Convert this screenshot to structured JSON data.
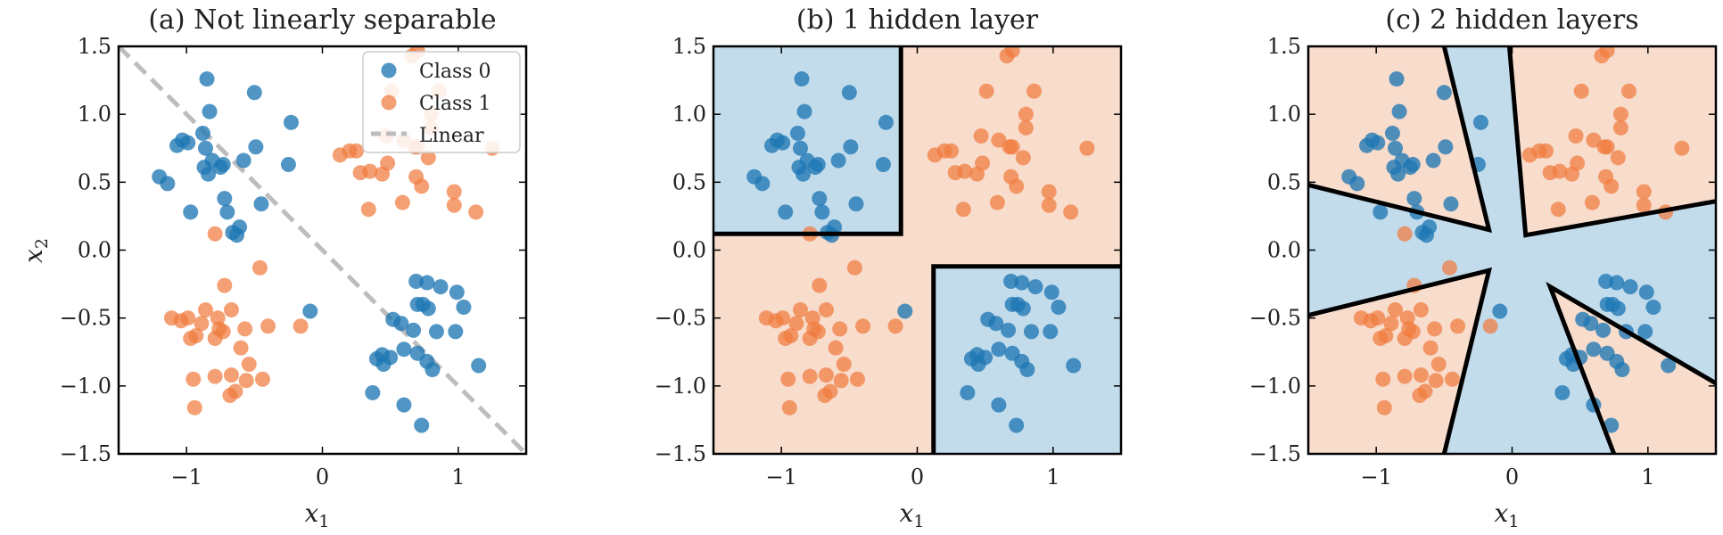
{
  "chart_data": [
    {
      "type": "scatter",
      "title": "(a) Not linearly separable",
      "xlabel": "x",
      "xlabel_sub": "1",
      "ylabel": "x",
      "ylabel_sub": "2",
      "xlim": [
        -1.5,
        1.5
      ],
      "ylim": [
        -1.5,
        1.5
      ],
      "xticks": [
        -1,
        0,
        1
      ],
      "yticks": [
        -1.5,
        -1.0,
        -0.5,
        0.0,
        0.5,
        1.0,
        1.5
      ],
      "legend": {
        "placement": "top-right",
        "entries": [
          "Class 0",
          "Class 1",
          "Linear"
        ]
      },
      "linear_boundary": [
        [
          -1.5,
          1.5
        ],
        [
          1.5,
          -1.5
        ]
      ],
      "regions": [],
      "boundaries": []
    },
    {
      "type": "scatter",
      "title": "(b) 1 hidden layer",
      "xlabel": "x",
      "xlabel_sub": "1",
      "xlim": [
        -1.5,
        1.5
      ],
      "ylim": [
        -1.5,
        1.5
      ],
      "xticks": [
        -1,
        0,
        1
      ],
      "yticks": [
        -1.5,
        -1.0,
        -0.5,
        0.0,
        0.5,
        1.0,
        1.5
      ],
      "background_class": 1,
      "regions": [
        {
          "class": 0,
          "polygon": [
            [
              -1.5,
              1.5
            ],
            [
              -0.12,
              1.5
            ],
            [
              -0.12,
              0.12
            ],
            [
              -1.5,
              0.12
            ]
          ]
        },
        {
          "class": 0,
          "polygon": [
            [
              0.12,
              -0.12
            ],
            [
              1.5,
              -0.12
            ],
            [
              1.5,
              -1.5
            ],
            [
              0.12,
              -1.5
            ]
          ]
        }
      ],
      "boundaries": [
        [
          [
            -1.5,
            0.12
          ],
          [
            -0.12,
            0.12
          ],
          [
            -0.12,
            1.5
          ]
        ],
        [
          [
            0.12,
            -1.5
          ],
          [
            0.12,
            -0.12
          ],
          [
            1.5,
            -0.12
          ]
        ]
      ]
    },
    {
      "type": "scatter",
      "title": "(c) 2 hidden layers",
      "xlabel": "x",
      "xlabel_sub": "1",
      "xlim": [
        -1.5,
        1.5
      ],
      "ylim": [
        -1.5,
        1.5
      ],
      "xticks": [
        -1,
        0,
        1
      ],
      "yticks": [
        -1.5,
        -1.0,
        -0.5,
        0.0,
        0.5,
        1.0,
        1.5
      ],
      "background_class": 0,
      "regions": [
        {
          "class": 1,
          "polygon": [
            [
              -1.5,
              0.48
            ],
            [
              -0.17,
              0.15
            ],
            [
              -0.5,
              1.5
            ],
            [
              -1.5,
              1.5
            ]
          ]
        },
        {
          "class": 1,
          "polygon": [
            [
              -0.02,
              1.5
            ],
            [
              0.1,
              0.11
            ],
            [
              1.5,
              0.36
            ],
            [
              1.5,
              1.5
            ]
          ]
        },
        {
          "class": 1,
          "polygon": [
            [
              -1.5,
              -0.48
            ],
            [
              -0.17,
              -0.15
            ],
            [
              -0.5,
              -1.5
            ],
            [
              -1.5,
              -1.5
            ]
          ]
        },
        {
          "class": 1,
          "polygon": [
            [
              0.28,
              -0.27
            ],
            [
              1.5,
              -0.98
            ],
            [
              1.5,
              -1.5
            ],
            [
              0.75,
              -1.5
            ]
          ]
        }
      ],
      "boundaries": [
        [
          [
            -1.5,
            0.48
          ],
          [
            -0.17,
            0.15
          ],
          [
            -0.5,
            1.5
          ]
        ],
        [
          [
            -0.02,
            1.5
          ],
          [
            0.1,
            0.11
          ],
          [
            1.5,
            0.36
          ]
        ],
        [
          [
            -1.5,
            -0.48
          ],
          [
            -0.17,
            -0.15
          ],
          [
            -0.5,
            -1.5
          ]
        ],
        [
          [
            0.75,
            -1.5
          ],
          [
            0.28,
            -0.27
          ],
          [
            1.5,
            -0.98
          ]
        ]
      ]
    }
  ],
  "points": {
    "class0": [
      [
        -0.85,
        1.26
      ],
      [
        -0.5,
        1.16
      ],
      [
        -0.83,
        1.02
      ],
      [
        -0.23,
        0.94
      ],
      [
        -1.03,
        0.81
      ],
      [
        -0.88,
        0.86
      ],
      [
        -1.07,
        0.77
      ],
      [
        -0.99,
        0.79
      ],
      [
        -0.86,
        0.75
      ],
      [
        -0.49,
        0.76
      ],
      [
        -0.81,
        0.66
      ],
      [
        -0.73,
        0.63
      ],
      [
        -0.75,
        0.61
      ],
      [
        -0.87,
        0.61
      ],
      [
        -1.2,
        0.54
      ],
      [
        -0.84,
        0.56
      ],
      [
        -0.58,
        0.66
      ],
      [
        -0.25,
        0.63
      ],
      [
        -1.14,
        0.49
      ],
      [
        -0.72,
        0.38
      ],
      [
        -0.97,
        0.28
      ],
      [
        -0.7,
        0.28
      ],
      [
        -0.45,
        0.34
      ],
      [
        -0.61,
        0.17
      ],
      [
        -0.66,
        0.13
      ],
      [
        -0.63,
        0.11
      ],
      [
        0.69,
        -0.23
      ],
      [
        0.77,
        -0.24
      ],
      [
        0.87,
        -0.27
      ],
      [
        0.7,
        -0.4
      ],
      [
        0.74,
        -0.4
      ],
      [
        0.78,
        -0.43
      ],
      [
        0.99,
        -0.31
      ],
      [
        1.04,
        -0.42
      ],
      [
        0.52,
        -0.51
      ],
      [
        0.58,
        -0.54
      ],
      [
        0.67,
        -0.59
      ],
      [
        0.84,
        -0.6
      ],
      [
        0.98,
        -0.6
      ],
      [
        0.4,
        -0.8
      ],
      [
        0.44,
        -0.77
      ],
      [
        0.45,
        -0.84
      ],
      [
        0.5,
        -0.79
      ],
      [
        0.6,
        -0.73
      ],
      [
        0.7,
        -0.76
      ],
      [
        0.77,
        -0.82
      ],
      [
        0.81,
        -0.88
      ],
      [
        1.15,
        -0.85
      ],
      [
        0.37,
        -1.05
      ],
      [
        0.6,
        -1.14
      ],
      [
        0.73,
        -1.29
      ],
      [
        -0.09,
        -0.45
      ]
    ],
    "class1": [
      [
        0.7,
        1.47
      ],
      [
        0.66,
        1.43
      ],
      [
        0.86,
        1.17
      ],
      [
        0.51,
        1.17
      ],
      [
        0.8,
        1.0
      ],
      [
        0.8,
        0.9
      ],
      [
        0.25,
        0.73
      ],
      [
        0.47,
        0.84
      ],
      [
        0.6,
        0.81
      ],
      [
        0.68,
        0.76
      ],
      [
        0.7,
        0.76
      ],
      [
        0.2,
        0.73
      ],
      [
        1.25,
        0.75
      ],
      [
        0.13,
        0.7
      ],
      [
        0.78,
        0.68
      ],
      [
        0.35,
        0.58
      ],
      [
        0.48,
        0.64
      ],
      [
        0.44,
        0.56
      ],
      [
        0.69,
        0.54
      ],
      [
        0.28,
        0.57
      ],
      [
        0.73,
        0.47
      ],
      [
        0.97,
        0.43
      ],
      [
        0.34,
        0.3
      ],
      [
        0.59,
        0.35
      ],
      [
        0.97,
        0.33
      ],
      [
        1.13,
        0.28
      ],
      [
        -0.79,
        0.12
      ],
      [
        -0.46,
        -0.13
      ],
      [
        -0.72,
        -0.26
      ],
      [
        -0.86,
        -0.44
      ],
      [
        -0.67,
        -0.44
      ],
      [
        -0.77,
        -0.5
      ],
      [
        -1.11,
        -0.5
      ],
      [
        -1.04,
        -0.52
      ],
      [
        -0.99,
        -0.5
      ],
      [
        -0.89,
        -0.54
      ],
      [
        -0.76,
        -0.58
      ],
      [
        -0.73,
        -0.6
      ],
      [
        -0.57,
        -0.58
      ],
      [
        -0.4,
        -0.56
      ],
      [
        -0.16,
        -0.56
      ],
      [
        -0.93,
        -0.63
      ],
      [
        -0.97,
        -0.65
      ],
      [
        -0.79,
        -0.65
      ],
      [
        -0.6,
        -0.72
      ],
      [
        -0.54,
        -0.84
      ],
      [
        -0.95,
        -0.95
      ],
      [
        -0.79,
        -0.93
      ],
      [
        -0.67,
        -0.92
      ],
      [
        -0.56,
        -0.96
      ],
      [
        -0.44,
        -0.95
      ],
      [
        -0.64,
        -1.04
      ],
      [
        -0.68,
        -1.07
      ],
      [
        -0.94,
        -1.16
      ]
    ]
  },
  "colors": {
    "class0": "#1f77b4",
    "class1": "#f07b3f",
    "region0": "#c2dcec",
    "region1": "#f8dccc",
    "linear": "#bdbdbd",
    "boundary": "#000000"
  }
}
